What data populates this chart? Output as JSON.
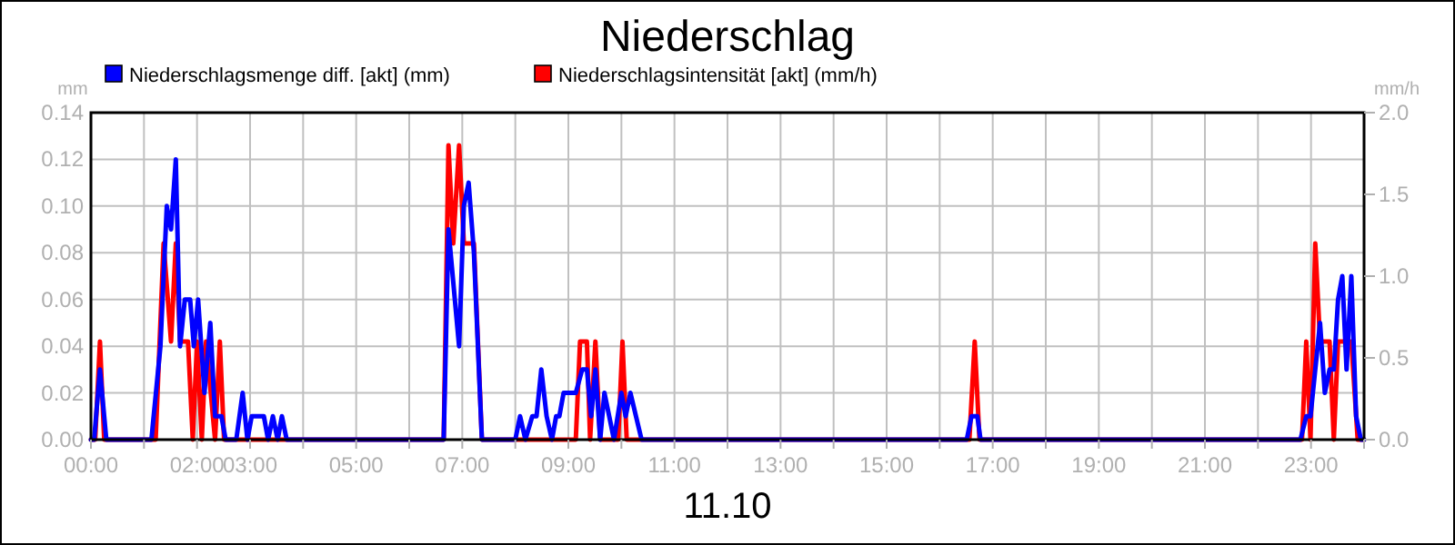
{
  "chart_data": {
    "type": "line",
    "title": "Niederschlag",
    "xlabel": "11.10",
    "ylabel": "mm",
    "y2label": "mm/h",
    "legend": "top",
    "grid": true,
    "marker": "none",
    "line_style": "solid",
    "xlim": [
      0,
      24
    ],
    "xticks": [
      {
        "value": 0,
        "label": "00:00"
      },
      {
        "value": 1,
        "label": null
      },
      {
        "value": 2,
        "label": "02:00"
      },
      {
        "value": 3,
        "label": "03:00"
      },
      {
        "value": 4,
        "label": null
      },
      {
        "value": 5,
        "label": "05:00"
      },
      {
        "value": 6,
        "label": null
      },
      {
        "value": 7,
        "label": "07:00"
      },
      {
        "value": 8,
        "label": null
      },
      {
        "value": 9,
        "label": "09:00"
      },
      {
        "value": 10,
        "label": null
      },
      {
        "value": 11,
        "label": "11:00"
      },
      {
        "value": 12,
        "label": null
      },
      {
        "value": 13,
        "label": "13:00"
      },
      {
        "value": 14,
        "label": null
      },
      {
        "value": 15,
        "label": "15:00"
      },
      {
        "value": 16,
        "label": null
      },
      {
        "value": 17,
        "label": "17:00"
      },
      {
        "value": 18,
        "label": null
      },
      {
        "value": 19,
        "label": "19:00"
      },
      {
        "value": 20,
        "label": null
      },
      {
        "value": 21,
        "label": "21:00"
      },
      {
        "value": 22,
        "label": null
      },
      {
        "value": 23,
        "label": "23:00"
      },
      {
        "value": 24,
        "label": null
      }
    ],
    "ylim": [
      0,
      0.14
    ],
    "yticks": [
      {
        "value": 0,
        "label": "0.00"
      },
      {
        "value": 0.02,
        "label": "0.02"
      },
      {
        "value": 0.04,
        "label": "0.04"
      },
      {
        "value": 0.06,
        "label": "0.06"
      },
      {
        "value": 0.08,
        "label": "0.08"
      },
      {
        "value": 0.1,
        "label": "0.10"
      },
      {
        "value": 0.12,
        "label": "0.12"
      },
      {
        "value": 0.14,
        "label": "0.14"
      }
    ],
    "y2lim": [
      0,
      2
    ],
    "y2ticks": [
      {
        "value": 0,
        "label": "0.0"
      },
      {
        "value": 0.5,
        "label": "0.5"
      },
      {
        "value": 1,
        "label": "1.0"
      },
      {
        "value": 1.5,
        "label": "1.5"
      },
      {
        "value": 2,
        "label": "2.0"
      }
    ],
    "series": [
      {
        "name": "Niederschlagsintensität [akt] (mm/h)",
        "color": "#ff0000",
        "axis": "y2",
        "x": [
          0,
          0.08,
          0.17,
          0.25,
          1.22,
          1.37,
          1.51,
          1.6,
          1.68,
          1.83,
          1.92,
          2.0,
          2.09,
          2.17,
          2.34,
          2.43,
          2.51,
          6.65,
          6.74,
          6.83,
          6.94,
          7.03,
          7.22,
          7.37,
          9.14,
          9.22,
          9.35,
          9.41,
          9.51,
          9.6,
          9.94,
          10.02,
          10.1,
          16.56,
          16.66,
          16.75,
          22.83,
          22.91,
          22.99,
          23.08,
          23.17,
          23.35,
          23.43,
          23.51,
          23.76,
          23.88,
          24
        ],
        "values": [
          0,
          0,
          0.6,
          0,
          0,
          1.2,
          0.6,
          1.2,
          0.6,
          0.6,
          0,
          0.6,
          0,
          0.6,
          0,
          0.6,
          0,
          0,
          1.8,
          1.2,
          1.8,
          1.2,
          1.2,
          0,
          0,
          0.6,
          0.6,
          0,
          0.6,
          0,
          0,
          0.6,
          0,
          0,
          0.6,
          0,
          0,
          0.6,
          0,
          1.2,
          0.6,
          0.6,
          0,
          0.6,
          0.6,
          0,
          0
        ]
      },
      {
        "name": "Niederschlagsmenge diff. [akt] (mm)",
        "color": "#0000ff",
        "x": [
          0,
          0.06,
          0.17,
          0.29,
          1.14,
          1.31,
          1.43,
          1.51,
          1.6,
          1.68,
          1.77,
          1.87,
          1.94,
          2.02,
          2.14,
          2.25,
          2.34,
          2.46,
          2.54,
          2.74,
          2.86,
          2.95,
          3.03,
          3.26,
          3.34,
          3.43,
          3.52,
          3.6,
          3.69,
          6.65,
          6.74,
          6.94,
          7.03,
          7.12,
          7.22,
          7.37,
          8.0,
          8.09,
          8.19,
          8.32,
          8.4,
          8.49,
          8.59,
          8.69,
          8.77,
          8.83,
          8.91,
          9.14,
          9.26,
          9.35,
          9.43,
          9.51,
          9.6,
          9.68,
          9.77,
          9.86,
          10.0,
          10.08,
          10.17,
          10.38,
          16.51,
          16.6,
          16.71,
          16.77,
          22.8,
          22.91,
          22.99,
          23.08,
          23.17,
          23.26,
          23.35,
          23.43,
          23.51,
          23.59,
          23.67,
          23.76,
          23.85,
          23.94,
          24
        ],
        "values": [
          0,
          0,
          0.03,
          0,
          0,
          0.04,
          0.1,
          0.09,
          0.12,
          0.04,
          0.06,
          0.06,
          0.04,
          0.06,
          0.02,
          0.05,
          0.01,
          0.01,
          0,
          0,
          0.02,
          0,
          0.01,
          0.01,
          0,
          0.01,
          0,
          0.01,
          0,
          0,
          0.09,
          0.04,
          0.1,
          0.11,
          0.08,
          0,
          0,
          0.01,
          0,
          0.01,
          0.01,
          0.03,
          0.01,
          0,
          0.01,
          0.01,
          0.02,
          0.02,
          0.03,
          0.03,
          0.01,
          0.03,
          0,
          0.02,
          0.01,
          0,
          0.02,
          0.01,
          0.02,
          0,
          0,
          0.01,
          0.01,
          0,
          0,
          0.01,
          0.01,
          0.03,
          0.05,
          0.02,
          0.03,
          0.03,
          0.06,
          0.07,
          0.03,
          0.07,
          0.01,
          0,
          0
        ]
      }
    ]
  }
}
